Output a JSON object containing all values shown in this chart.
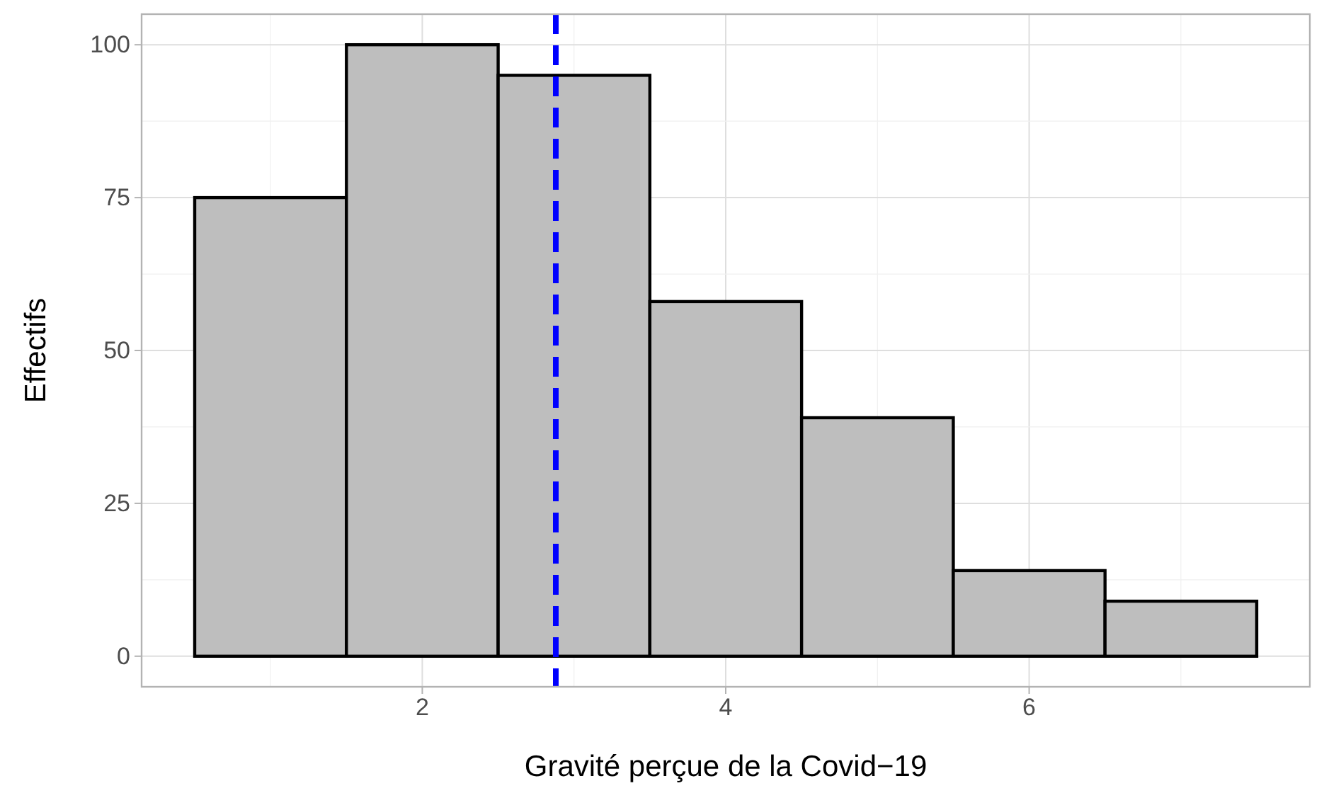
{
  "chart_data": {
    "type": "histogram",
    "xlabel": "Gravité perçue de la Covid−19",
    "ylabel": "Effectifs",
    "bins": [
      0.5,
      1.5,
      2.5,
      3.5,
      4.5,
      5.5,
      6.5,
      7.5
    ],
    "values": [
      75,
      100,
      95,
      58,
      39,
      14,
      9
    ],
    "color": "#bebebe",
    "xlim": [
      0.15,
      7.85
    ],
    "ylim": [
      -5,
      105
    ],
    "xticks": [
      {
        "value": 1,
        "label": null
      },
      2,
      {
        "value": 3,
        "label": null
      },
      4,
      {
        "value": 5,
        "label": null
      },
      6,
      {
        "value": 7,
        "label": null
      }
    ],
    "yticks": [
      0,
      {
        "value": 12.5,
        "label": null
      },
      25,
      {
        "value": 37.5,
        "label": null
      },
      50,
      {
        "value": 62.5,
        "label": null
      },
      75,
      {
        "value": 87.5,
        "label": null
      },
      100
    ],
    "grid": true,
    "ref_lines": [
      {
        "axis": "x",
        "value": 2.88,
        "color": "#0000ff",
        "line_style": "dashed"
      }
    ]
  }
}
